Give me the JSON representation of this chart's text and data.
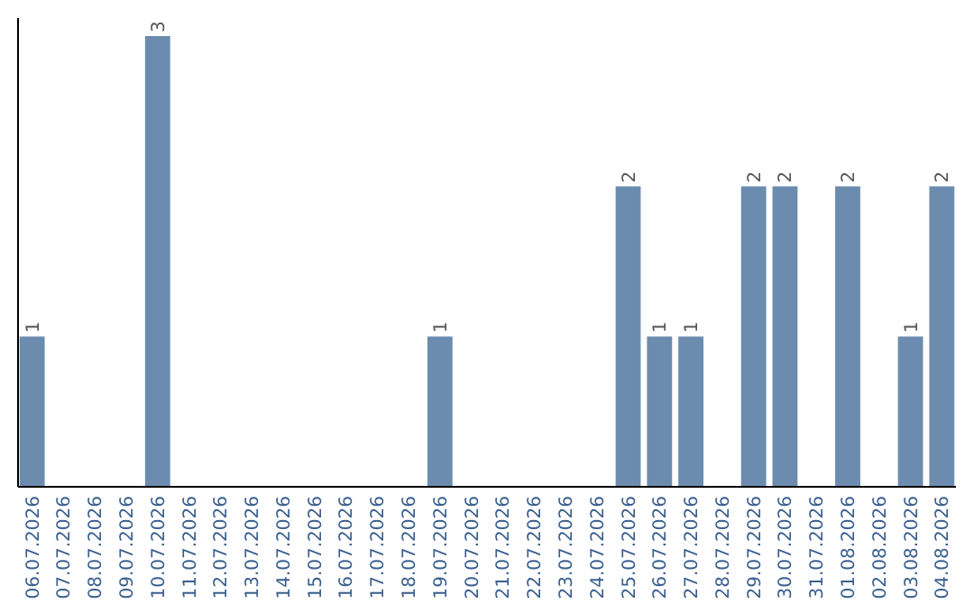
{
  "chart_data": {
    "type": "bar",
    "categories": [
      "06.07.2026",
      "07.07.2026",
      "08.07.2026",
      "09.07.2026",
      "10.07.2026",
      "11.07.2026",
      "12.07.2026",
      "13.07.2026",
      "14.07.2026",
      "15.07.2026",
      "16.07.2026",
      "17.07.2026",
      "18.07.2026",
      "19.07.2026",
      "20.07.2026",
      "21.07.2026",
      "22.07.2026",
      "23.07.2026",
      "24.07.2026",
      "25.07.2026",
      "26.07.2026",
      "27.07.2026",
      "28.07.2026",
      "29.07.2026",
      "30.07.2026",
      "31.07.2026",
      "01.08.2026",
      "02.08.2026",
      "03.08.2026",
      "04.08.2026"
    ],
    "values": [
      1,
      0,
      0,
      0,
      3,
      0,
      0,
      0,
      0,
      0,
      0,
      0,
      0,
      1,
      0,
      0,
      0,
      0,
      0,
      2,
      1,
      1,
      0,
      2,
      2,
      0,
      2,
      0,
      1,
      2
    ],
    "value_labels": [
      "1",
      null,
      null,
      null,
      "3",
      null,
      null,
      null,
      null,
      null,
      null,
      null,
      null,
      "1",
      null,
      null,
      null,
      null,
      null,
      "2",
      "1",
      "1",
      null,
      "2",
      "2",
      null,
      "2",
      null,
      "1",
      "2"
    ],
    "color": "#6b8cae",
    "ylim": [
      0,
      3
    ],
    "tick_labels": "x"
  }
}
